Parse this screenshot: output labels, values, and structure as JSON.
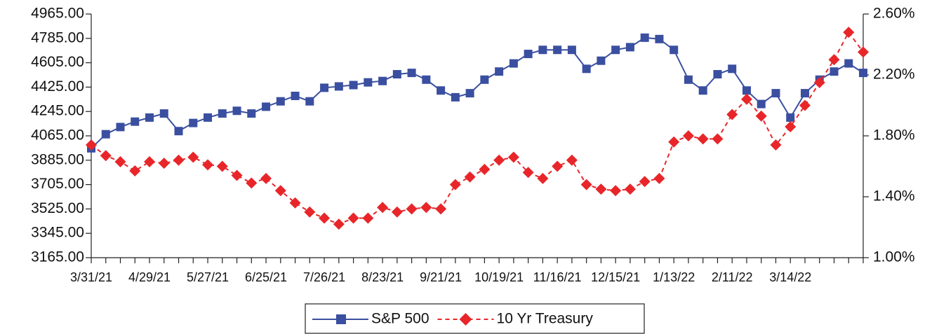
{
  "chart_data": {
    "type": "line",
    "categories": [
      "3/31/21",
      null,
      null,
      null,
      "4/29/21",
      null,
      null,
      null,
      "5/27/21",
      null,
      null,
      null,
      "6/25/21",
      null,
      null,
      null,
      "7/26/21",
      null,
      null,
      null,
      "8/23/21",
      null,
      null,
      null,
      "9/21/21",
      null,
      null,
      null,
      "10/19/21",
      null,
      null,
      null,
      "11/16/21",
      null,
      null,
      null,
      "12/15/21",
      null,
      null,
      null,
      "1/13/22",
      null,
      null,
      null,
      "2/11/22",
      null,
      null,
      null,
      "3/14/22",
      null,
      null,
      null,
      null,
      null
    ],
    "series": [
      {
        "name": "S&P 500",
        "color": "#3a4fa0",
        "marker": "square",
        "dash": false,
        "values": [
          3973,
          4077,
          4130,
          4170,
          4200,
          4230,
          4100,
          4160,
          4200,
          4230,
          4250,
          4230,
          4280,
          4320,
          4360,
          4320,
          4420,
          4430,
          4440,
          4460,
          4470,
          4520,
          4530,
          4480,
          4400,
          4350,
          4380,
          4480,
          4540,
          4600,
          4670,
          4700,
          4700,
          4700,
          4560,
          4620,
          4700,
          4720,
          4790,
          4780,
          4700,
          4480,
          4400,
          4520,
          4560,
          4400,
          4300,
          4380,
          4200,
          4380,
          4480,
          4540,
          4600,
          4530
        ]
      },
      {
        "name": "10 Yr Treasury",
        "color": "#e8262a",
        "marker": "diamond",
        "dash": true,
        "axis": "y2",
        "values": [
          1.74,
          1.67,
          1.63,
          1.57,
          1.63,
          1.62,
          1.64,
          1.66,
          1.61,
          1.6,
          1.54,
          1.49,
          1.52,
          1.44,
          1.36,
          1.3,
          1.26,
          1.22,
          1.26,
          1.26,
          1.33,
          1.3,
          1.32,
          1.33,
          1.32,
          1.48,
          1.53,
          1.58,
          1.64,
          1.66,
          1.56,
          1.52,
          1.6,
          1.64,
          1.48,
          1.45,
          1.44,
          1.45,
          1.5,
          1.52,
          1.76,
          1.8,
          1.78,
          1.78,
          1.94,
          2.04,
          1.93,
          1.74,
          1.86,
          2.0,
          2.15,
          2.3,
          2.48,
          2.35
        ]
      }
    ],
    "ylim": [
      3165,
      4965
    ],
    "yticks": [
      {
        "value": 3165,
        "label": "3165.00"
      },
      {
        "value": 3345,
        "label": "3345.00"
      },
      {
        "value": 3525,
        "label": "3525.00"
      },
      {
        "value": 3705,
        "label": "3705.00"
      },
      {
        "value": 3885,
        "label": "3885.00"
      },
      {
        "value": 4065,
        "label": "4065.00"
      },
      {
        "value": 4245,
        "label": "4245.00"
      },
      {
        "value": 4425,
        "label": "4425.00"
      },
      {
        "value": 4605,
        "label": "4605.00"
      },
      {
        "value": 4785,
        "label": "4785.00"
      },
      {
        "value": 4965,
        "label": "4965.00"
      }
    ],
    "y2lim": [
      1.0,
      2.6
    ],
    "y2ticks": [
      {
        "value": 1.0,
        "label": "1.00%"
      },
      {
        "value": 1.4,
        "label": "1.40%"
      },
      {
        "value": 1.8,
        "label": "1.80%"
      },
      {
        "value": 2.2,
        "label": "2.20%"
      },
      {
        "value": 2.6,
        "label": "2.60%"
      }
    ],
    "legend": "bottom"
  }
}
